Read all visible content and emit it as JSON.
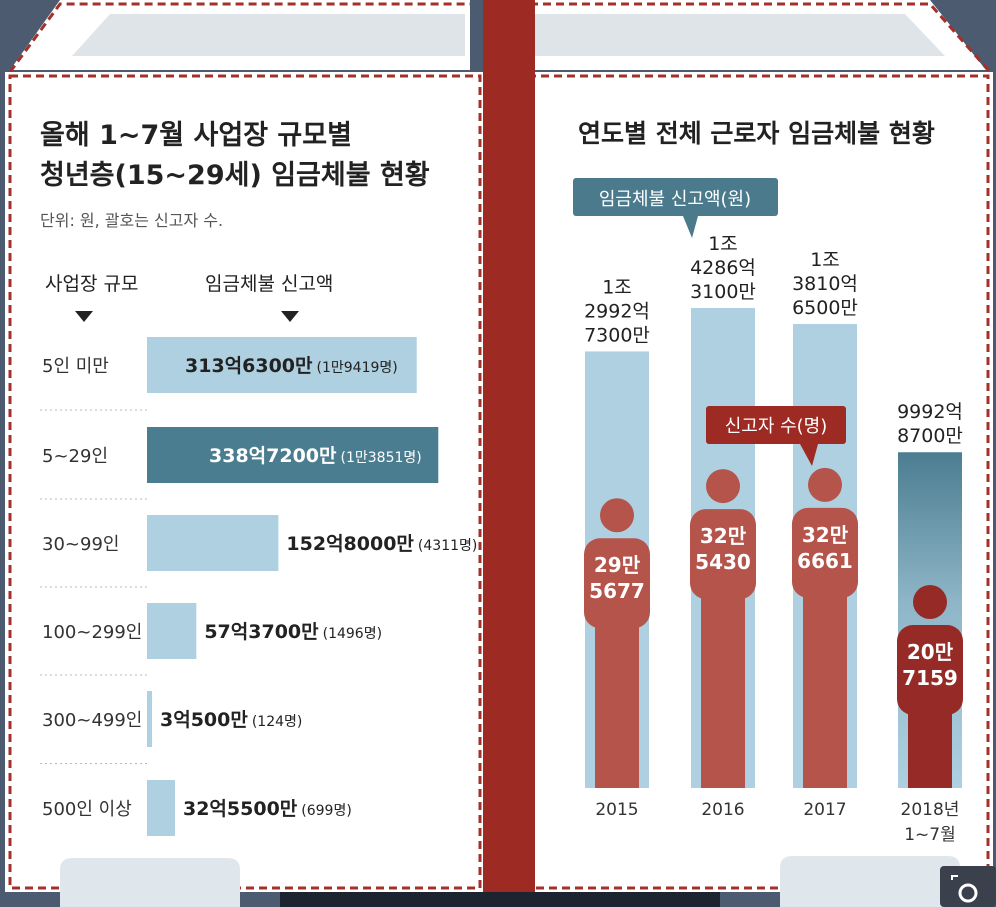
{
  "left_panel": {
    "title_line1": "올해 1~7월 사업장 규모별",
    "title_line2": "청년층(15~29세) 임금체불 현황",
    "unit_note": "단위: 원, 괄호는 신고자 수.",
    "col_header_size": "사업장 규모",
    "col_header_amount": "임금체불 신고액"
  },
  "right_panel": {
    "title": "연도별 전체 근로자 임금체불 현황",
    "amount_tag": "임금체불 신고액(원)",
    "count_tag": "신고자 수(명)"
  },
  "colors": {
    "bar_light": "#aed0e0",
    "bar_dark": "#4b7d90",
    "person": "#b5544b",
    "person_2018": "#962a26",
    "divider_red": "#9e2a24",
    "dashed_border": "#a3302a"
  },
  "chart_data": [
    {
      "type": "bar",
      "orientation": "horizontal",
      "title": "올해 1~7월 사업장 규모별 청년층(15~29세) 임금체불 현황",
      "categories": [
        "5인 미만",
        "5~29인",
        "30~99인",
        "100~299인",
        "300~499인",
        "500인 이상"
      ],
      "values": [
        313.63,
        338.72,
        152.8,
        57.37,
        3.05,
        32.55
      ],
      "value_unit": "억원",
      "labels": [
        "313억6300만",
        "338억7200만",
        "152억8000만",
        "57억3700만",
        "3억500만",
        "32억5500만"
      ],
      "counts": [
        "(1만9419명)",
        "(1만3851명)",
        "(4311명)",
        "(1496명)",
        "(124명)",
        "(699명)"
      ],
      "highlight_index": 1
    },
    {
      "type": "bar",
      "title": "연도별 전체 근로자 임금체불 현황",
      "categories": [
        [
          "2015"
        ],
        [
          "2016"
        ],
        [
          "2017"
        ],
        [
          "2018년",
          "1~7월"
        ]
      ],
      "series": [
        {
          "name": "임금체불 신고액(원)",
          "values": [
            12992.73,
            14286.31,
            13810.65,
            9992.87
          ],
          "value_unit": "억원",
          "labels": [
            [
              "1조",
              "2992억",
              "7300만"
            ],
            [
              "1조",
              "4286억",
              "3100만"
            ],
            [
              "1조",
              "3810억",
              "6500만"
            ],
            [
              "9992억",
              "8700만"
            ]
          ]
        },
        {
          "name": "신고자 수(명)",
          "values": [
            295677,
            325430,
            326661,
            207159
          ],
          "labels": [
            [
              "29만",
              "5677"
            ],
            [
              "32만",
              "5430"
            ],
            [
              "32만",
              "6661"
            ],
            [
              "20만",
              "7159"
            ]
          ]
        }
      ]
    }
  ]
}
